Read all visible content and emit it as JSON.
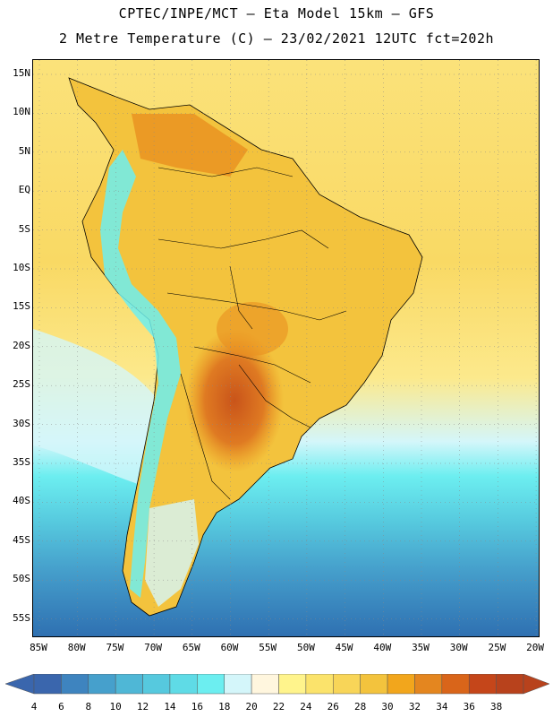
{
  "title": {
    "line1": "CPTEC/INPE/MCT –  Eta Model 15km – GFS",
    "line2": "2 Metre Temperature (C) – 23/02/2021 12UTC fct=202h"
  },
  "map": {
    "lat_labels": [
      "15N",
      "10N",
      "5N",
      "EQ",
      "5S",
      "10S",
      "15S",
      "20S",
      "25S",
      "30S",
      "35S",
      "40S",
      "45S",
      "50S",
      "55S"
    ],
    "lon_labels": [
      "85W",
      "80W",
      "75W",
      "70W",
      "65W",
      "60W",
      "55W",
      "50W",
      "45W",
      "40W",
      "35W",
      "30W",
      "25W",
      "20W"
    ],
    "colors": {
      "ocean_warm": "#f9da62",
      "ocean_mid": "#fce98c",
      "land_hot": "#e9901f",
      "land_very_hot": "#c9541a",
      "andes_cold": "#7fe8f0",
      "south_ocean_1": "#5bd0e6",
      "south_ocean_2": "#3a9dc9",
      "south_ocean_3": "#2e6fb1"
    }
  },
  "colorbar": {
    "values": [
      "4",
      "6",
      "8",
      "10",
      "12",
      "14",
      "16",
      "18",
      "20",
      "22",
      "24",
      "26",
      "28",
      "30",
      "32",
      "34",
      "36",
      "38"
    ],
    "colors": [
      "#3a66ad",
      "#3e84bf",
      "#46a0cc",
      "#4fb7d6",
      "#56c9de",
      "#5fdbe6",
      "#6ceef0",
      "#d4f6fa",
      "#fff6de",
      "#fff48c",
      "#fbe36b",
      "#f8d558",
      "#f3c33d",
      "#f2a61c",
      "#e4861f",
      "#d9651a",
      "#c5461a",
      "#b8421c"
    ],
    "left_arrow_color": "#3a66ad",
    "right_arrow_color": "#b8421c"
  }
}
